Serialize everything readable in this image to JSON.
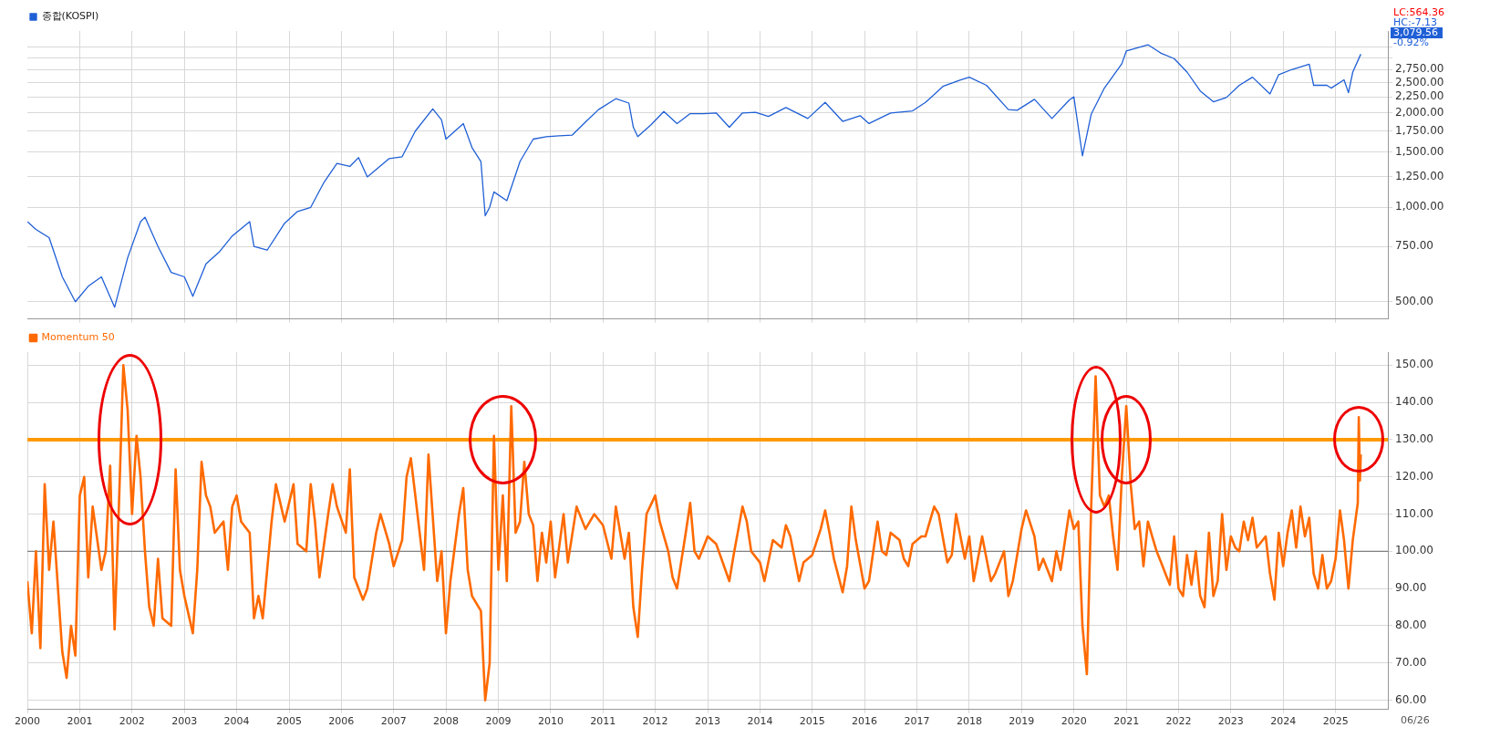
{
  "chart_data": [
    {
      "type": "line",
      "log": "y",
      "grid": true,
      "legend": "top left",
      "marker": "none",
      "tick_labels": "y",
      "xlim": [
        "2000-01-01",
        "2026-01-01"
      ],
      "xticks": [
        {
          "value": "2001",
          "label": null
        },
        {
          "value": "2002",
          "label": null
        },
        {
          "value": "2003",
          "label": null
        },
        {
          "value": "2004",
          "label": null
        },
        {
          "value": "2005",
          "label": null
        },
        {
          "value": "2006",
          "label": null
        },
        {
          "value": "2007",
          "label": null
        },
        {
          "value": "2008",
          "label": null
        },
        {
          "value": "2009",
          "label": null
        },
        {
          "value": "2010",
          "label": null
        },
        {
          "value": "2011",
          "label": null
        },
        {
          "value": "2012",
          "label": null
        },
        {
          "value": "2013",
          "label": null
        },
        {
          "value": "2014",
          "label": null
        },
        {
          "value": "2015",
          "label": null
        },
        {
          "value": "2016",
          "label": null
        },
        {
          "value": "2017",
          "label": null
        },
        {
          "value": "2018",
          "label": null
        },
        {
          "value": "2019",
          "label": null
        },
        {
          "value": "2020",
          "label": null
        },
        {
          "value": "2021",
          "label": null
        },
        {
          "value": "2022",
          "label": null
        },
        {
          "value": "2023",
          "label": null
        },
        {
          "value": "2024",
          "label": null
        },
        {
          "value": "2025",
          "label": null
        }
      ],
      "ylim": [
        440,
        3650
      ],
      "yticks": [
        {
          "value": 500,
          "label": "500.00"
        },
        {
          "value": 750,
          "label": "750.00"
        },
        {
          "value": 1000,
          "label": "1,000.00"
        },
        {
          "value": 1250,
          "label": "1,250.00"
        },
        {
          "value": 1500,
          "label": "1,500.00"
        },
        {
          "value": 1750,
          "label": "1,750.00"
        },
        {
          "value": 2000,
          "label": "2,000.00"
        },
        {
          "value": 2250,
          "label": "2,250.00"
        },
        {
          "value": 2500,
          "label": "2,500.00"
        },
        {
          "value": 2750,
          "label": "2,750.00"
        },
        {
          "value": 3000,
          "label": null
        },
        {
          "value": 3250,
          "label": null
        }
      ],
      "annotations": [
        "LC:564.36",
        "HC:-7.13",
        "3,079.56",
        "-0.92%"
      ],
      "series": [
        {
          "name": "종합(KOSPI)",
          "color": "#1f5fd6",
          "x": [
            "2000-01",
            "2000-03",
            "2000-06",
            "2000-09",
            "2000-12",
            "2001-03",
            "2001-06",
            "2001-09",
            "2001-12",
            "2002-03",
            "2002-04",
            "2002-07",
            "2002-10",
            "2003-01",
            "2003-03",
            "2003-06",
            "2003-09",
            "2003-12",
            "2004-04",
            "2004-05",
            "2004-08",
            "2004-12",
            "2005-03",
            "2005-06",
            "2005-09",
            "2005-12",
            "2006-03",
            "2006-05",
            "2006-07",
            "2006-12",
            "2007-03",
            "2007-06",
            "2007-10",
            "2007-12",
            "2008-01",
            "2008-05",
            "2008-07",
            "2008-09",
            "2008-10",
            "2008-11",
            "2008-12",
            "2009-03",
            "2009-06",
            "2009-09",
            "2009-12",
            "2010-03",
            "2010-06",
            "2010-09",
            "2010-12",
            "2011-04",
            "2011-07",
            "2011-08",
            "2011-09",
            "2011-12",
            "2012-03",
            "2012-06",
            "2012-09",
            "2012-12",
            "2013-03",
            "2013-06",
            "2013-09",
            "2013-12",
            "2014-03",
            "2014-07",
            "2014-12",
            "2015-04",
            "2015-08",
            "2015-12",
            "2016-02",
            "2016-07",
            "2016-12",
            "2017-03",
            "2017-07",
            "2017-11",
            "2018-01",
            "2018-05",
            "2018-10",
            "2018-12",
            "2019-04",
            "2019-08",
            "2019-12",
            "2020-01",
            "2020-03",
            "2020-05",
            "2020-08",
            "2020-12",
            "2021-01",
            "2021-06",
            "2021-09",
            "2021-12",
            "2022-03",
            "2022-06",
            "2022-09",
            "2022-12",
            "2023-03",
            "2023-06",
            "2023-10",
            "2023-12",
            "2024-03",
            "2024-07",
            "2024-08",
            "2024-11",
            "2024-12",
            "2025-03",
            "2025-04",
            "2025-05",
            "2025-06-26"
          ],
          "values": [
            900,
            850,
            800,
            600,
            500,
            560,
            600,
            480,
            690,
            900,
            930,
            750,
            620,
            600,
            520,
            660,
            720,
            810,
            900,
            750,
            730,
            890,
            970,
            1000,
            1200,
            1380,
            1350,
            1440,
            1250,
            1430,
            1450,
            1750,
            2060,
            1900,
            1650,
            1850,
            1550,
            1400,
            940,
            1000,
            1120,
            1050,
            1400,
            1650,
            1680,
            1690,
            1700,
            1870,
            2050,
            2220,
            2150,
            1800,
            1680,
            1830,
            2020,
            1850,
            1990,
            1990,
            2000,
            1800,
            2000,
            2010,
            1950,
            2080,
            1920,
            2160,
            1880,
            1960,
            1850,
            2000,
            2030,
            2160,
            2430,
            2550,
            2600,
            2450,
            2050,
            2040,
            2210,
            1920,
            2200,
            2250,
            1460,
            1980,
            2400,
            2870,
            3150,
            3300,
            3100,
            2980,
            2700,
            2350,
            2170,
            2240,
            2450,
            2600,
            2300,
            2650,
            2750,
            2860,
            2450,
            2450,
            2400,
            2550,
            2320,
            2700,
            3079.56
          ]
        }
      ]
    },
    {
      "type": "line",
      "grid": true,
      "legend": "top left",
      "marker": "none",
      "xlim": [
        "2000-01-01",
        "2026-01-01"
      ],
      "xticks": [
        {
          "value": "2000",
          "label": "2000"
        },
        {
          "value": "2001",
          "label": "2001"
        },
        {
          "value": "2002",
          "label": "2002"
        },
        {
          "value": "2003",
          "label": "2003"
        },
        {
          "value": "2004",
          "label": "2004"
        },
        {
          "value": "2005",
          "label": "2005"
        },
        {
          "value": "2006",
          "label": "2006"
        },
        {
          "value": "2007",
          "label": "2007"
        },
        {
          "value": "2008",
          "label": "2008"
        },
        {
          "value": "2009",
          "label": "2009"
        },
        {
          "value": "2010",
          "label": "2010"
        },
        {
          "value": "2011",
          "label": "2011"
        },
        {
          "value": "2012",
          "label": "2012"
        },
        {
          "value": "2013",
          "label": "2013"
        },
        {
          "value": "2014",
          "label": "2014"
        },
        {
          "value": "2015",
          "label": "2015"
        },
        {
          "value": "2016",
          "label": "2016"
        },
        {
          "value": "2017",
          "label": "2017"
        },
        {
          "value": "2018",
          "label": "2018"
        },
        {
          "value": "2019",
          "label": "2019"
        },
        {
          "value": "2020",
          "label": "2020"
        },
        {
          "value": "2021",
          "label": "2021"
        },
        {
          "value": "2022",
          "label": "2022"
        },
        {
          "value": "2023",
          "label": "2023"
        },
        {
          "value": "2024",
          "label": "2024"
        },
        {
          "value": "2025",
          "label": "2025"
        }
      ],
      "ylim": [
        57.5,
        153.5
      ],
      "yticks": [
        {
          "value": 60,
          "label": "60.00"
        },
        {
          "value": 70,
          "label": "70.00"
        },
        {
          "value": 80,
          "label": "80.00"
        },
        {
          "value": 90,
          "label": "90.00"
        },
        {
          "value": 100,
          "label": "100.00"
        },
        {
          "value": 110,
          "label": "110.00"
        },
        {
          "value": 120,
          "label": "120.00"
        },
        {
          "value": 130,
          "label": "130.00"
        },
        {
          "value": 140,
          "label": "140.00"
        },
        {
          "value": 150,
          "label": "150.00"
        }
      ],
      "ref_lines": [
        {
          "axis": "y",
          "value": 130,
          "color": "#ff9900"
        },
        {
          "axis": "y",
          "value": 100,
          "color": "#808080"
        }
      ],
      "annotations": [
        "06/26"
      ],
      "series": [
        {
          "name": "Momentum 50",
          "color": "#ff6a00",
          "x": [
            "2000-01",
            "2000-02",
            "2000-03",
            "2000-04",
            "2000-05",
            "2000-06",
            "2000-07",
            "2000-09",
            "2000-10",
            "2000-11",
            "2000-12",
            "2001-01",
            "2001-02",
            "2001-03",
            "2001-04",
            "2001-06",
            "2001-07",
            "2001-08",
            "2001-09",
            "2001-10",
            "2001-11",
            "2001-12",
            "2002-01",
            "2002-02",
            "2002-03",
            "2002-04",
            "2002-05",
            "2002-06",
            "2002-07",
            "2002-08",
            "2002-10",
            "2002-11",
            "2002-12",
            "2003-01",
            "2003-03",
            "2003-04",
            "2003-05",
            "2003-06",
            "2003-07",
            "2003-08",
            "2003-10",
            "2003-11",
            "2003-12",
            "2004-01",
            "2004-02",
            "2004-04",
            "2004-05",
            "2004-06",
            "2004-07",
            "2004-09",
            "2004-10",
            "2004-12",
            "2005-02",
            "2005-03",
            "2005-05",
            "2005-06",
            "2005-07",
            "2005-08",
            "2005-10",
            "2005-11",
            "2005-12",
            "2006-02",
            "2006-03",
            "2006-04",
            "2006-06",
            "2006-07",
            "2006-09",
            "2006-10",
            "2006-12",
            "2007-01",
            "2007-03",
            "2007-04",
            "2007-05",
            "2007-06",
            "2007-08",
            "2007-09",
            "2007-11",
            "2007-12",
            "2008-01",
            "2008-02",
            "2008-04",
            "2008-05",
            "2008-06",
            "2008-07",
            "2008-09",
            "2008-10",
            "2008-11",
            "2008-12",
            "2009-01",
            "2009-02",
            "2009-03",
            "2009-04",
            "2009-05",
            "2009-06",
            "2009-07",
            "2009-08",
            "2009-09",
            "2009-10",
            "2009-11",
            "2009-12",
            "2010-01",
            "2010-02",
            "2010-04",
            "2010-05",
            "2010-07",
            "2010-09",
            "2010-11",
            "2011-01",
            "2011-03",
            "2011-04",
            "2011-06",
            "2011-07",
            "2011-08",
            "2011-09",
            "2011-10",
            "2011-11",
            "2012-01",
            "2012-02",
            "2012-04",
            "2012-05",
            "2012-06",
            "2012-08",
            "2012-09",
            "2012-10",
            "2012-11",
            "2013-01",
            "2013-03",
            "2013-06",
            "2013-07",
            "2013-09",
            "2013-10",
            "2013-11",
            "2014-01",
            "2014-02",
            "2014-04",
            "2014-06",
            "2014-07",
            "2014-08",
            "2014-10",
            "2014-11",
            "2015-01",
            "2015-03",
            "2015-04",
            "2015-05",
            "2015-06",
            "2015-08",
            "2015-09",
            "2015-10",
            "2015-11",
            "2016-01",
            "2016-02",
            "2016-04",
            "2016-05",
            "2016-06",
            "2016-07",
            "2016-09",
            "2016-10",
            "2016-11",
            "2016-12",
            "2017-02",
            "2017-03",
            "2017-05",
            "2017-06",
            "2017-08",
            "2017-09",
            "2017-10",
            "2017-12",
            "2018-01",
            "2018-02",
            "2018-04",
            "2018-06",
            "2018-07",
            "2018-09",
            "2018-10",
            "2018-11",
            "2019-01",
            "2019-02",
            "2019-04",
            "2019-05",
            "2019-06",
            "2019-08",
            "2019-09",
            "2019-10",
            "2019-12",
            "2020-01",
            "2020-02",
            "2020-03",
            "2020-04",
            "2020-05",
            "2020-06",
            "2020-07",
            "2020-08",
            "2020-09",
            "2020-10",
            "2020-11",
            "2020-12",
            "2021-01",
            "2021-02",
            "2021-03",
            "2021-04",
            "2021-05",
            "2021-06",
            "2021-07",
            "2021-08",
            "2021-09",
            "2021-10",
            "2021-11",
            "2021-12",
            "2022-01",
            "2022-02",
            "2022-03",
            "2022-04",
            "2022-05",
            "2022-06",
            "2022-07",
            "2022-08",
            "2022-09",
            "2022-10",
            "2022-11",
            "2022-12",
            "2023-01",
            "2023-02",
            "2023-03",
            "2023-04",
            "2023-05",
            "2023-06",
            "2023-07",
            "2023-09",
            "2023-10",
            "2023-11",
            "2023-12",
            "2024-01",
            "2024-02",
            "2024-03",
            "2024-04",
            "2024-05",
            "2024-06",
            "2024-07",
            "2024-08",
            "2024-09",
            "2024-10",
            "2024-11",
            "2024-12",
            "2025-01",
            "2025-02",
            "2025-03",
            "2025-04",
            "2025-05",
            "2025-06-05",
            "2025-06-12",
            "2025-06-20",
            "2025-06-26"
          ],
          "values": [
            92,
            78,
            100,
            74,
            118,
            95,
            108,
            73,
            66,
            80,
            72,
            115,
            120,
            93,
            112,
            95,
            100,
            123,
            79,
            112,
            150,
            138,
            110,
            131,
            120,
            100,
            85,
            80,
            98,
            82,
            80,
            122,
            95,
            88,
            78,
            95,
            124,
            115,
            112,
            105,
            108,
            95,
            112,
            115,
            108,
            105,
            82,
            88,
            82,
            108,
            118,
            108,
            118,
            102,
            100,
            118,
            108,
            93,
            110,
            118,
            112,
            105,
            122,
            93,
            87,
            90,
            105,
            110,
            102,
            96,
            103,
            120,
            125,
            115,
            95,
            126,
            92,
            100,
            78,
            92,
            110,
            117,
            95,
            88,
            84,
            60,
            70,
            131,
            95,
            115,
            92,
            139,
            105,
            108,
            124,
            110,
            107,
            92,
            105,
            97,
            108,
            93,
            110,
            97,
            112,
            106,
            110,
            107,
            98,
            112,
            98,
            105,
            85,
            77,
            95,
            110,
            115,
            108,
            100,
            93,
            90,
            105,
            113,
            100,
            98,
            104,
            102,
            92,
            99,
            112,
            108,
            100,
            97,
            92,
            103,
            101,
            107,
            104,
            92,
            97,
            99,
            106,
            111,
            105,
            98,
            89,
            96,
            112,
            103,
            90,
            92,
            108,
            100,
            99,
            105,
            103,
            98,
            96,
            102,
            104,
            104,
            112,
            110,
            97,
            99,
            110,
            98,
            104,
            92,
            104,
            92,
            94,
            100,
            88,
            92,
            106,
            111,
            104,
            95,
            98,
            92,
            100,
            95,
            111,
            106,
            108,
            80,
            67,
            112,
            147,
            115,
            112,
            115,
            104,
            95,
            120,
            139,
            118,
            106,
            108,
            96,
            108,
            104,
            100,
            97,
            94,
            91,
            104,
            90,
            88,
            99,
            91,
            100,
            88,
            85,
            105,
            88,
            92,
            110,
            95,
            104,
            101,
            100,
            108,
            103,
            109,
            101,
            104,
            94,
            87,
            105,
            96,
            105,
            111,
            101,
            112,
            104,
            109,
            94,
            90,
            99,
            90,
            92,
            98,
            111,
            103,
            90,
            103,
            113,
            136,
            119,
            126
          ]
        }
      ]
    }
  ]
}
